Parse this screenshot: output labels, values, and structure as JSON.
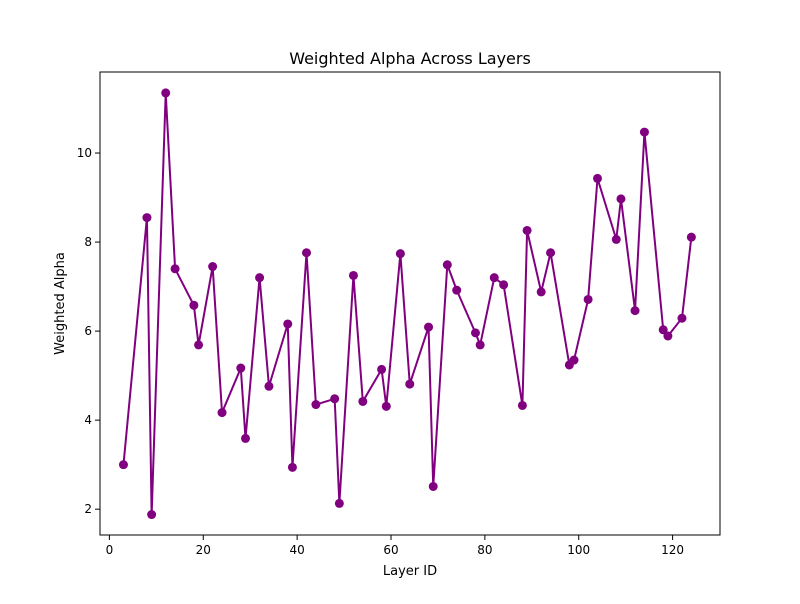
{
  "chart_data": {
    "type": "line",
    "title": "Weighted Alpha Across Layers",
    "xlabel": "Layer ID",
    "ylabel": "Weighted Alpha",
    "xlim": [
      -2.0,
      130.1
    ],
    "ylim": [
      1.42,
      11.82
    ],
    "xticks": [
      0,
      20,
      40,
      60,
      80,
      100,
      120
    ],
    "yticks": [
      2,
      4,
      6,
      8,
      10
    ],
    "grid": false,
    "series": [
      {
        "color": "#800080",
        "marker": "circle",
        "points": [
          [
            3,
            3.0
          ],
          [
            8,
            8.55
          ],
          [
            9,
            1.88
          ],
          [
            12,
            11.35
          ],
          [
            14,
            7.4
          ],
          [
            18,
            6.58
          ],
          [
            19,
            5.69
          ],
          [
            22,
            7.45
          ],
          [
            24,
            4.17
          ],
          [
            28,
            5.17
          ],
          [
            29,
            3.59
          ],
          [
            32,
            7.2
          ],
          [
            34,
            4.76
          ],
          [
            38,
            6.16
          ],
          [
            39,
            2.94
          ],
          [
            42,
            7.76
          ],
          [
            44,
            4.35
          ],
          [
            48,
            4.48
          ],
          [
            49,
            2.13
          ],
          [
            52,
            7.25
          ],
          [
            54,
            4.42
          ],
          [
            58,
            5.14
          ],
          [
            59,
            4.31
          ],
          [
            62,
            7.74
          ],
          [
            64,
            4.81
          ],
          [
            68,
            6.09
          ],
          [
            69,
            2.51
          ],
          [
            72,
            7.49
          ],
          [
            74,
            6.92
          ],
          [
            78,
            5.96
          ],
          [
            79,
            5.69
          ],
          [
            82,
            7.2
          ],
          [
            84,
            7.04
          ],
          [
            88,
            4.33
          ],
          [
            89,
            8.26
          ],
          [
            92,
            6.88
          ],
          [
            94,
            7.76
          ],
          [
            98,
            5.24
          ],
          [
            99,
            5.35
          ],
          [
            102,
            6.71
          ],
          [
            104,
            9.43
          ],
          [
            108,
            8.06
          ],
          [
            109,
            8.97
          ],
          [
            112,
            6.46
          ],
          [
            114,
            10.47
          ],
          [
            118,
            6.03
          ],
          [
            119,
            5.89
          ],
          [
            122,
            6.29
          ],
          [
            124,
            8.11
          ]
        ]
      }
    ]
  }
}
